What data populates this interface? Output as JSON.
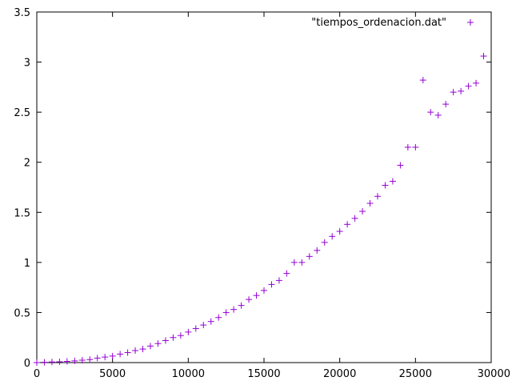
{
  "chart_data": {
    "type": "scatter",
    "title": "",
    "xlabel": "",
    "ylabel": "",
    "xlim": [
      0,
      30000
    ],
    "ylim": [
      0,
      3.5
    ],
    "xticks": [
      0,
      5000,
      10000,
      15000,
      20000,
      25000,
      30000
    ],
    "yticks": [
      0,
      0.5,
      1,
      1.5,
      2,
      2.5,
      3,
      3.5
    ],
    "xtick_labels": [
      "0",
      "5000",
      "10000",
      "15000",
      "20000",
      "25000",
      "30000"
    ],
    "ytick_labels": [
      "0",
      "0.5",
      "1",
      "1.5",
      "2",
      "2.5",
      "3",
      "3.5"
    ],
    "grid": false,
    "legend_position": "top-right",
    "marker": "plus",
    "color": "#9400D3",
    "series": [
      {
        "name": "\"tiempos_ordenacion.dat\"",
        "x": [
          0,
          500,
          1000,
          1500,
          2000,
          2500,
          3000,
          3500,
          4000,
          4500,
          5000,
          5500,
          6000,
          6500,
          7000,
          7500,
          8000,
          8500,
          9000,
          9500,
          10000,
          10500,
          11000,
          11500,
          12000,
          12500,
          13000,
          13500,
          14000,
          14500,
          15000,
          15500,
          16000,
          16500,
          17000,
          17500,
          18000,
          18500,
          19000,
          19500,
          20000,
          20500,
          21000,
          21500,
          22000,
          22500,
          23000,
          23500,
          24000,
          24500,
          25000,
          25500,
          26000,
          26500,
          27000,
          27500,
          28000,
          28500,
          29000,
          29500
        ],
        "y": [
          0.0,
          0.003,
          0.006,
          0.008,
          0.012,
          0.017,
          0.024,
          0.03,
          0.045,
          0.055,
          0.065,
          0.085,
          0.1,
          0.12,
          0.135,
          0.165,
          0.19,
          0.22,
          0.25,
          0.27,
          0.305,
          0.34,
          0.375,
          0.41,
          0.45,
          0.5,
          0.53,
          0.57,
          0.63,
          0.67,
          0.72,
          0.78,
          0.82,
          0.89,
          1.0,
          1.0,
          1.06,
          1.12,
          1.2,
          1.26,
          1.31,
          1.38,
          1.44,
          1.51,
          1.59,
          1.66,
          1.77,
          1.81,
          1.97,
          2.15,
          2.15,
          2.82,
          2.5,
          2.47,
          2.58,
          2.7,
          2.71,
          2.76,
          2.79,
          3.06
        ]
      }
    ]
  }
}
